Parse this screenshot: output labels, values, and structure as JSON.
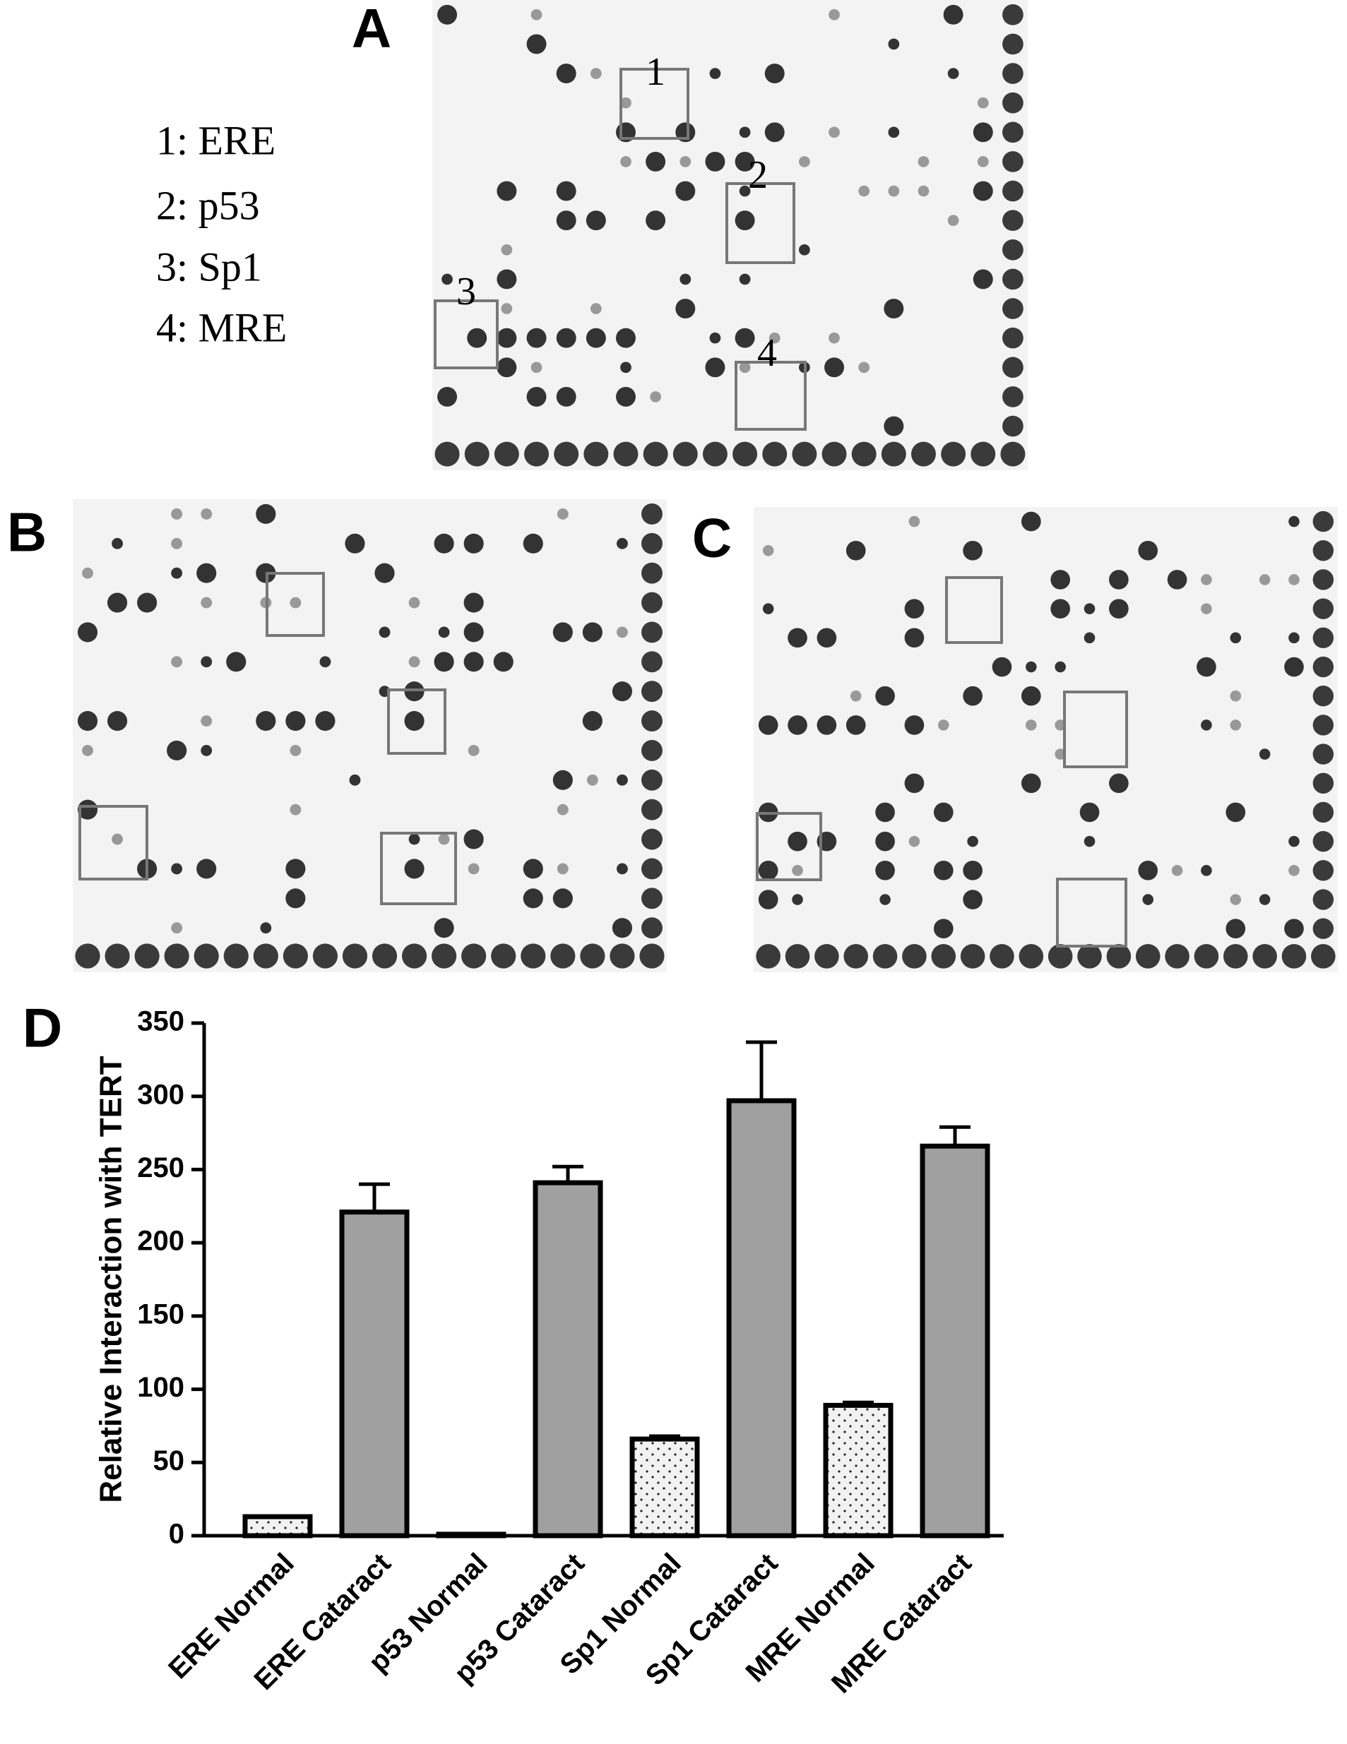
{
  "panels": {
    "A": {
      "label": "A",
      "legend": [
        "1: ERE",
        "2: p53",
        "3: Sp1",
        "4: MRE"
      ],
      "box_labels": [
        "1",
        "2",
        "3",
        "4"
      ]
    },
    "B": {
      "label": "B"
    },
    "C": {
      "label": "C"
    }
  },
  "chart_data": {
    "type": "bar",
    "label": "D",
    "ylabel": "Relative Interaction with TERT",
    "categories": [
      "ERE Normal",
      "ERE Cataract",
      "p53 Normal",
      "p53 Cataract",
      "Sp1 Normal",
      "Sp1 Cataract",
      "MRE Normal",
      "MRE Cataract"
    ],
    "values": [
      13,
      221,
      1,
      241,
      66,
      297,
      89,
      266
    ],
    "errors": [
      0,
      19,
      0,
      11,
      2,
      40,
      2,
      13
    ],
    "bar_styles": [
      "dotted",
      "solid",
      "dotted",
      "solid",
      "dotted",
      "solid",
      "dotted",
      "solid"
    ],
    "color": "#a0a0a0",
    "ylim": [
      0,
      350
    ],
    "yticks": [
      0,
      50,
      100,
      150,
      200,
      250,
      300,
      350
    ]
  }
}
